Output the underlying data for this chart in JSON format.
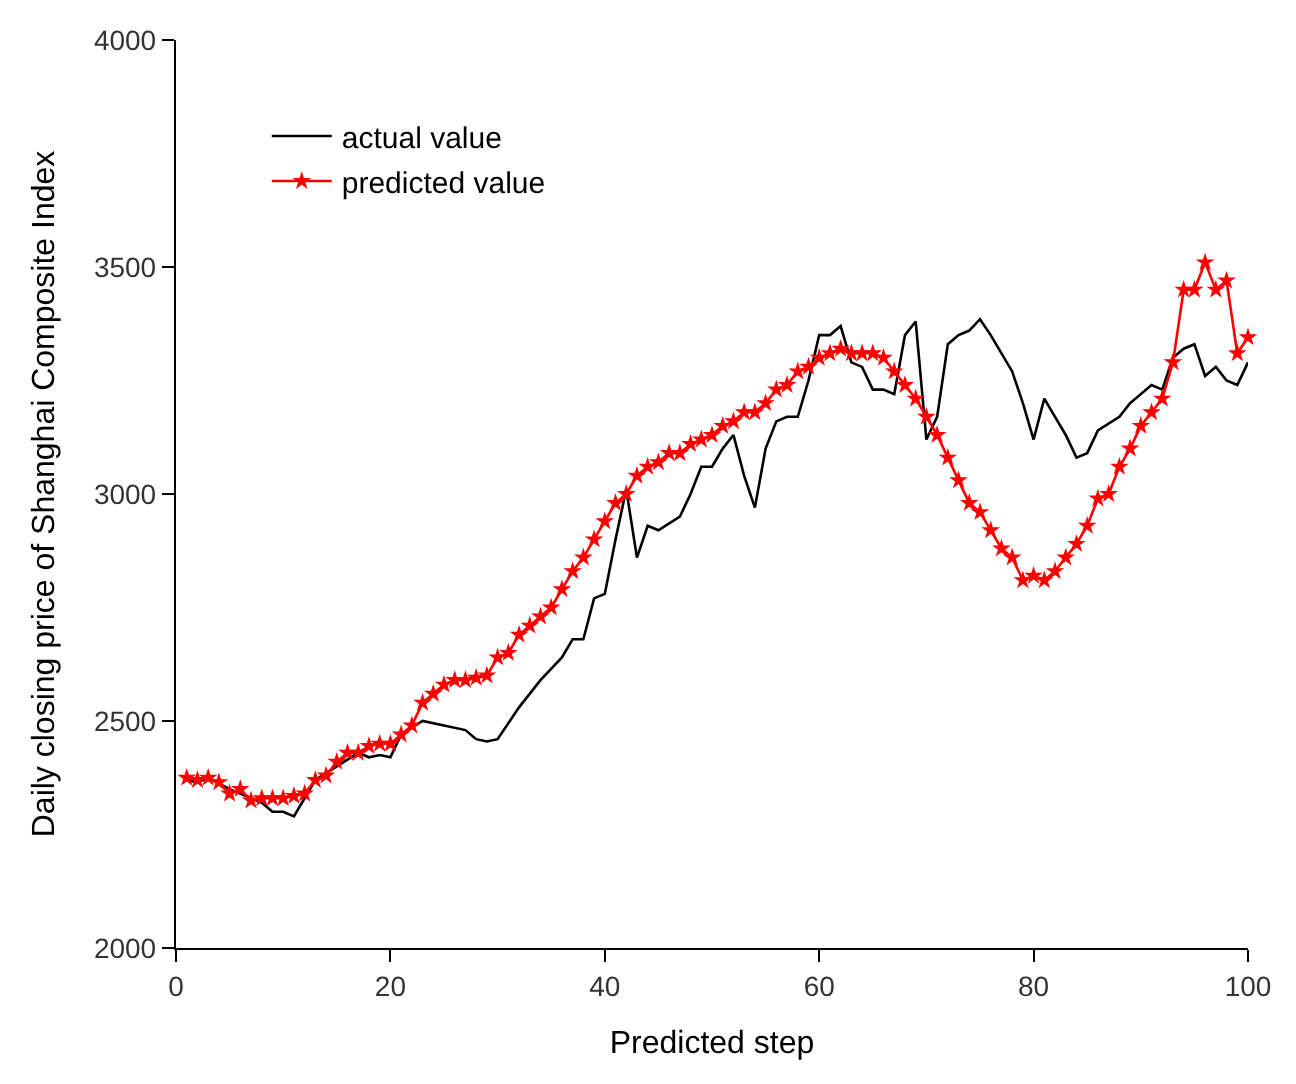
{
  "chart_data": {
    "type": "line",
    "xlabel": "Predicted step",
    "ylabel": "Daily closing price of Shanghai Composite Index",
    "xlim": [
      0,
      100
    ],
    "xticks": [
      0,
      20,
      40,
      60,
      80,
      100
    ],
    "ylim": [
      2000,
      4000
    ],
    "yticks": [
      2000,
      2500,
      3000,
      3500,
      4000
    ],
    "legend": "top left",
    "series": [
      {
        "name": "actual value",
        "color": "#000000",
        "marker": "none",
        "x": [
          1,
          2,
          3,
          5,
          8,
          9,
          10,
          11,
          13,
          15,
          17,
          18,
          19,
          20,
          21,
          23,
          25,
          27,
          28,
          29,
          30,
          32,
          34,
          36,
          37,
          38,
          39,
          40,
          41,
          42,
          43,
          44,
          45,
          47,
          48,
          49,
          50,
          51,
          52,
          53,
          54,
          55,
          56,
          57,
          58,
          59,
          60,
          61,
          62,
          63,
          64,
          65,
          66,
          67,
          68,
          69,
          70,
          71,
          72,
          73,
          74,
          75,
          76,
          78,
          79,
          80,
          81,
          82,
          83,
          84,
          85,
          86,
          88,
          89,
          90,
          91,
          92,
          93,
          94,
          95,
          96,
          97,
          98,
          99,
          100
        ],
        "values": [
          2370,
          2365,
          2375,
          2350,
          2320,
          2300,
          2300,
          2290,
          2370,
          2400,
          2430,
          2420,
          2425,
          2420,
          2470,
          2500,
          2490,
          2480,
          2460,
          2455,
          2460,
          2530,
          2590,
          2640,
          2680,
          2680,
          2770,
          2780,
          2900,
          3010,
          2860,
          2930,
          2920,
          2950,
          3000,
          3060,
          3060,
          3100,
          3130,
          3040,
          2970,
          3100,
          3160,
          3170,
          3170,
          3250,
          3350,
          3350,
          3370,
          3290,
          3280,
          3230,
          3230,
          3220,
          3350,
          3380,
          3120,
          3170,
          3330,
          3350,
          3360,
          3385,
          3350,
          3270,
          3200,
          3120,
          3210,
          3170,
          3130,
          3080,
          3090,
          3140,
          3170,
          3200,
          3220,
          3240,
          3230,
          3300,
          3320,
          3330,
          3260,
          3280,
          3250,
          3240,
          3290
        ]
      },
      {
        "name": "predicted value",
        "color": "#ff0000",
        "marker": "star",
        "x": [
          1,
          2,
          3,
          4,
          5,
          6,
          7,
          8,
          9,
          10,
          11,
          12,
          13,
          14,
          15,
          16,
          17,
          18,
          19,
          20,
          21,
          22,
          23,
          24,
          25,
          26,
          27,
          28,
          29,
          30,
          31,
          32,
          33,
          34,
          35,
          36,
          37,
          38,
          39,
          40,
          41,
          42,
          43,
          44,
          45,
          46,
          47,
          48,
          49,
          50,
          51,
          52,
          53,
          54,
          55,
          56,
          57,
          58,
          59,
          60,
          61,
          62,
          63,
          64,
          65,
          66,
          67,
          68,
          69,
          70,
          71,
          72,
          73,
          74,
          75,
          76,
          77,
          78,
          79,
          80,
          81,
          82,
          83,
          84,
          85,
          86,
          87,
          88,
          89,
          90,
          91,
          92,
          93,
          94,
          95,
          96,
          97,
          98,
          99,
          100
        ],
        "values": [
          2375,
          2370,
          2375,
          2365,
          2340,
          2350,
          2325,
          2330,
          2330,
          2330,
          2335,
          2340,
          2370,
          2380,
          2410,
          2430,
          2430,
          2445,
          2450,
          2450,
          2470,
          2490,
          2540,
          2560,
          2580,
          2590,
          2590,
          2595,
          2600,
          2640,
          2650,
          2690,
          2710,
          2730,
          2750,
          2790,
          2830,
          2860,
          2900,
          2940,
          2980,
          3000,
          3040,
          3060,
          3070,
          3090,
          3090,
          3110,
          3120,
          3130,
          3150,
          3160,
          3180,
          3180,
          3200,
          3230,
          3240,
          3270,
          3280,
          3300,
          3310,
          3320,
          3310,
          3310,
          3310,
          3300,
          3270,
          3240,
          3210,
          3170,
          3130,
          3080,
          3030,
          2980,
          2960,
          2920,
          2880,
          2860,
          2810,
          2820,
          2810,
          2830,
          2860,
          2890,
          2930,
          2990,
          3000,
          3060,
          3100,
          3150,
          3180,
          3210,
          3290,
          3450,
          3450,
          3510,
          3450,
          3470,
          3310,
          3345
        ]
      }
    ]
  }
}
